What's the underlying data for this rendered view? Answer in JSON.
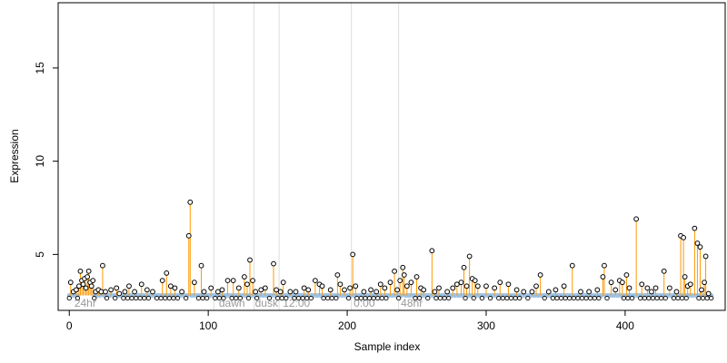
{
  "chart_data": {
    "type": "scatter",
    "title": "",
    "xlabel": "Sample index",
    "ylabel": "Expression",
    "xlim": [
      -8,
      472
    ],
    "ylim": [
      2.0,
      18.5
    ],
    "x_ticks": [
      0,
      100,
      200,
      300,
      400
    ],
    "y_ticks": [
      5,
      10,
      15
    ],
    "baseline": 2.8,
    "grid": false,
    "colors": {
      "stem": "#ff9900",
      "baseline": "#9ec3e6",
      "divider": "#dddddd",
      "point_stroke": "#000000",
      "condition_label": "#9a9a9a"
    },
    "condition_dividers": [
      104,
      133,
      151,
      203,
      237
    ],
    "condition_labels": [
      {
        "x": 3,
        "label": "24hr"
      },
      {
        "x": 107,
        "label": "dawn"
      },
      {
        "x": 133,
        "label": "dusk"
      },
      {
        "x": 153,
        "label": "12:00"
      },
      {
        "x": 204,
        "label": "0:00"
      },
      {
        "x": 238,
        "label": "48hr"
      }
    ],
    "series": [
      {
        "points": [
          [
            1,
            3.5
          ],
          [
            3,
            3.0
          ],
          [
            5,
            3.1
          ],
          [
            7,
            3.3
          ],
          [
            8,
            4.1
          ],
          [
            9,
            3.6
          ],
          [
            10,
            3.4
          ],
          [
            11,
            3.7
          ],
          [
            12,
            3.2
          ],
          [
            13,
            3.8
          ],
          [
            14,
            4.1
          ],
          [
            15,
            3.5
          ],
          [
            16,
            3.3
          ],
          [
            17,
            3.6
          ],
          [
            19,
            3.0
          ],
          [
            21,
            3.1
          ],
          [
            23,
            3.0
          ],
          [
            24,
            4.4
          ],
          [
            26,
            3.0
          ],
          [
            30,
            3.1
          ],
          [
            34,
            3.2
          ],
          [
            36,
            2.9
          ],
          [
            40,
            3.0
          ],
          [
            43,
            3.3
          ],
          [
            47,
            3.0
          ],
          [
            52,
            3.4
          ],
          [
            56,
            3.1
          ],
          [
            60,
            3.0
          ],
          [
            67,
            3.6
          ],
          [
            70,
            4.0
          ],
          [
            73,
            3.3
          ],
          [
            76,
            3.2
          ],
          [
            81,
            3.0
          ],
          [
            86,
            6.0
          ],
          [
            87,
            7.8
          ],
          [
            90,
            3.5
          ],
          [
            95,
            4.4
          ],
          [
            97,
            3.0
          ],
          [
            102,
            3.2
          ],
          [
            107,
            3.0
          ],
          [
            110,
            3.1
          ],
          [
            114,
            3.6
          ],
          [
            118,
            3.6
          ],
          [
            122,
            3.2
          ],
          [
            126,
            3.8
          ],
          [
            128,
            3.4
          ],
          [
            130,
            4.7
          ],
          [
            132,
            3.6
          ],
          [
            134,
            3.0
          ],
          [
            138,
            3.1
          ],
          [
            141,
            3.2
          ],
          [
            147,
            4.5
          ],
          [
            149,
            3.1
          ],
          [
            152,
            3.0
          ],
          [
            154,
            3.5
          ],
          [
            159,
            3.0
          ],
          [
            163,
            3.0
          ],
          [
            169,
            3.2
          ],
          [
            172,
            3.1
          ],
          [
            177,
            3.6
          ],
          [
            180,
            3.4
          ],
          [
            182,
            3.3
          ],
          [
            188,
            3.1
          ],
          [
            193,
            3.9
          ],
          [
            195,
            3.4
          ],
          [
            198,
            3.1
          ],
          [
            202,
            3.2
          ],
          [
            204,
            5.0
          ],
          [
            206,
            3.3
          ],
          [
            212,
            3.0
          ],
          [
            217,
            3.1
          ],
          [
            221,
            3.0
          ],
          [
            224,
            3.4
          ],
          [
            227,
            3.2
          ],
          [
            231,
            3.5
          ],
          [
            234,
            4.1
          ],
          [
            236,
            3.1
          ],
          [
            238,
            3.6
          ],
          [
            240,
            4.3
          ],
          [
            241,
            3.9
          ],
          [
            243,
            3.3
          ],
          [
            246,
            3.5
          ],
          [
            250,
            3.8
          ],
          [
            253,
            3.2
          ],
          [
            255,
            3.1
          ],
          [
            261,
            5.2
          ],
          [
            263,
            3.0
          ],
          [
            266,
            3.2
          ],
          [
            272,
            3.0
          ],
          [
            276,
            3.2
          ],
          [
            279,
            3.4
          ],
          [
            282,
            3.5
          ],
          [
            284,
            4.3
          ],
          [
            286,
            3.3
          ],
          [
            288,
            4.9
          ],
          [
            290,
            3.7
          ],
          [
            292,
            3.6
          ],
          [
            294,
            3.3
          ],
          [
            300,
            3.3
          ],
          [
            306,
            3.2
          ],
          [
            310,
            3.5
          ],
          [
            316,
            3.4
          ],
          [
            322,
            3.1
          ],
          [
            327,
            3.0
          ],
          [
            333,
            3.0
          ],
          [
            336,
            3.3
          ],
          [
            339,
            3.9
          ],
          [
            345,
            3.0
          ],
          [
            350,
            3.1
          ],
          [
            356,
            3.3
          ],
          [
            362,
            4.4
          ],
          [
            368,
            3.0
          ],
          [
            374,
            3.0
          ],
          [
            380,
            3.1
          ],
          [
            384,
            3.8
          ],
          [
            385,
            4.4
          ],
          [
            390,
            3.5
          ],
          [
            393,
            3.1
          ],
          [
            396,
            3.6
          ],
          [
            398,
            3.5
          ],
          [
            401,
            3.9
          ],
          [
            403,
            3.2
          ],
          [
            408,
            6.9
          ],
          [
            412,
            3.4
          ],
          [
            416,
            3.2
          ],
          [
            419,
            3.0
          ],
          [
            422,
            3.2
          ],
          [
            428,
            4.1
          ],
          [
            432,
            3.2
          ],
          [
            437,
            3.0
          ],
          [
            440,
            6.0
          ],
          [
            442,
            5.9
          ],
          [
            443,
            3.8
          ],
          [
            445,
            3.3
          ],
          [
            447,
            3.4
          ],
          [
            450,
            6.4
          ],
          [
            452,
            5.6
          ],
          [
            454,
            5.4
          ],
          [
            455,
            3.1
          ],
          [
            457,
            3.5
          ],
          [
            458,
            4.9
          ],
          [
            460,
            2.9
          ]
        ]
      }
    ]
  }
}
